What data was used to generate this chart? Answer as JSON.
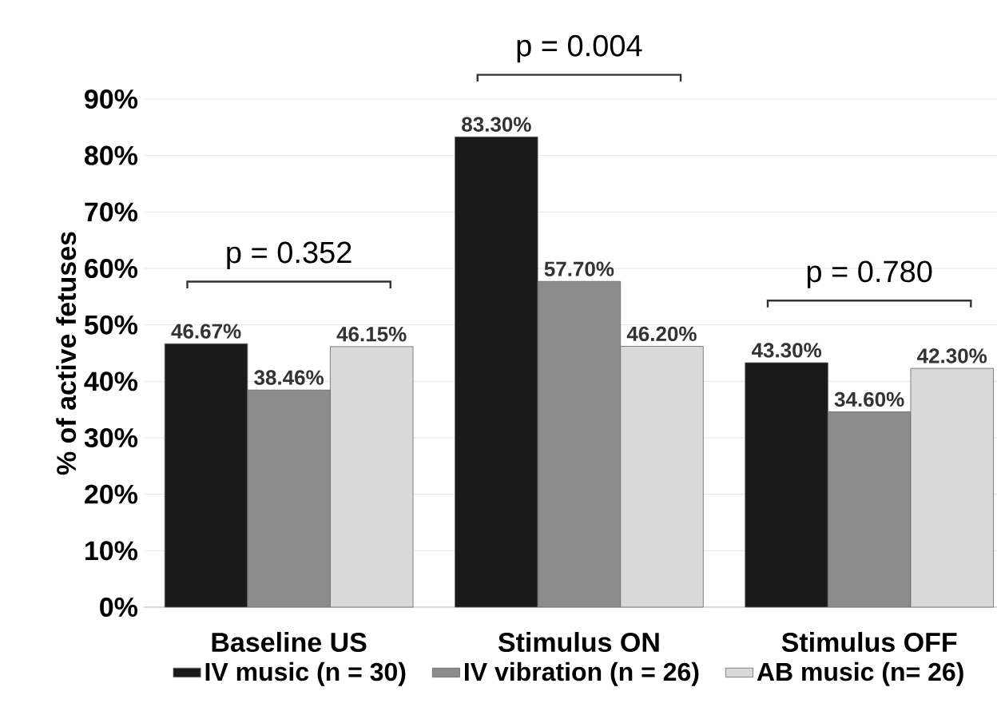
{
  "chart_data": {
    "type": "bar",
    "ylabel": "% of active fetuses",
    "categories": [
      "Baseline US",
      "Stimulus ON",
      "Stimulus OFF"
    ],
    "series": [
      {
        "name": "IV music (n = 30)",
        "color": "#1a1a1a",
        "values": [
          46.67,
          83.3,
          43.3
        ],
        "value_labels": [
          "46.67%",
          "83.30%",
          "43.30%"
        ]
      },
      {
        "name": "IV vibration (n = 26)",
        "color": "#8c8c8c",
        "values": [
          38.46,
          57.7,
          34.6
        ],
        "value_labels": [
          "38.46%",
          "57.70%",
          "34.60%"
        ]
      },
      {
        "name": "AB music (n= 26)",
        "color": "#d9d9d9",
        "values": [
          46.15,
          46.2,
          42.3
        ],
        "value_labels": [
          "46.15%",
          "46.20%",
          "42.30%"
        ]
      }
    ],
    "ylim": [
      0,
      90
    ],
    "yticks": [
      {
        "value": 0,
        "label": "0%"
      },
      {
        "value": 10,
        "label": "10%"
      },
      {
        "value": 20,
        "label": "20%"
      },
      {
        "value": 30,
        "label": "30%"
      },
      {
        "value": 40,
        "label": "40%"
      },
      {
        "value": 50,
        "label": "50%"
      },
      {
        "value": 60,
        "label": "60%"
      },
      {
        "value": 70,
        "label": "70%"
      },
      {
        "value": 80,
        "label": "80%"
      },
      {
        "value": 90,
        "label": "90%"
      }
    ],
    "grid": "y",
    "legend": "bottom",
    "annotations": [
      "p = 0.352",
      "p = 0.004",
      "p = 0.780"
    ]
  }
}
